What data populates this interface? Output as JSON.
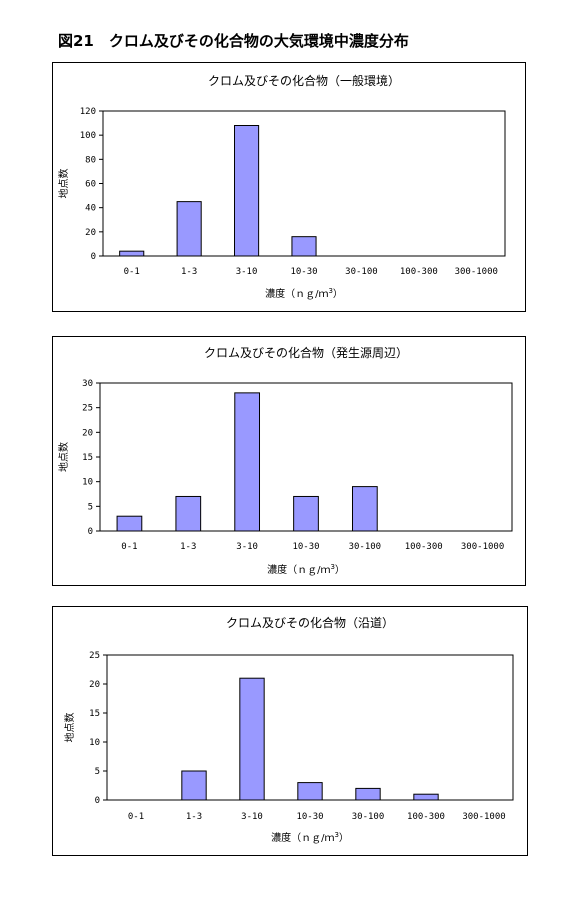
{
  "page_title": "図21　クロム及びその化合物の大気環境中濃度分布",
  "colors": {
    "bar_fill": "#9999ff",
    "bar_stroke": "#000000",
    "plot_border": "#000000"
  },
  "chart_data": [
    {
      "type": "bar",
      "title": "クロム及びその化合物（一般環境）",
      "categories": [
        "0-1",
        "1-3",
        "3-10",
        "10-30",
        "30-100",
        "100-300",
        "300-1000"
      ],
      "values": [
        4,
        45,
        108,
        16,
        0,
        0,
        0
      ],
      "ylabel": "地点数",
      "xlabel_main": "濃度（ｎｇ/ｍ",
      "xlabel_sup": "3",
      "xlabel_close": "）",
      "ylim": [
        0,
        120
      ],
      "yticks": [
        0,
        20,
        40,
        60,
        80,
        100,
        120
      ],
      "grid": false,
      "legend": "none"
    },
    {
      "type": "bar",
      "title": "クロム及びその化合物（発生源周辺）",
      "categories": [
        "0-1",
        "1-3",
        "3-10",
        "10-30",
        "30-100",
        "100-300",
        "300-1000"
      ],
      "values": [
        3,
        7,
        28,
        7,
        9,
        0,
        0
      ],
      "ylabel": "地点数",
      "xlabel_main": "濃度（ｎｇ/ｍ",
      "xlabel_sup": "3",
      "xlabel_close": "）",
      "ylim": [
        0,
        30
      ],
      "yticks": [
        0,
        5,
        10,
        15,
        20,
        25,
        30
      ],
      "grid": false,
      "legend": "none"
    },
    {
      "type": "bar",
      "title": "クロム及びその化合物（沿道）",
      "categories": [
        "0-1",
        "1-3",
        "3-10",
        "10-30",
        "30-100",
        "100-300",
        "300-1000"
      ],
      "values": [
        0,
        5,
        21,
        3,
        2,
        1,
        0
      ],
      "ylabel": "地点数",
      "xlabel_main": "濃度（ｎｇ/ｍ",
      "xlabel_sup": "3",
      "xlabel_close": "）",
      "ylim": [
        0,
        25
      ],
      "yticks": [
        0,
        5,
        10,
        15,
        20,
        25
      ],
      "grid": false,
      "legend": "none"
    }
  ]
}
